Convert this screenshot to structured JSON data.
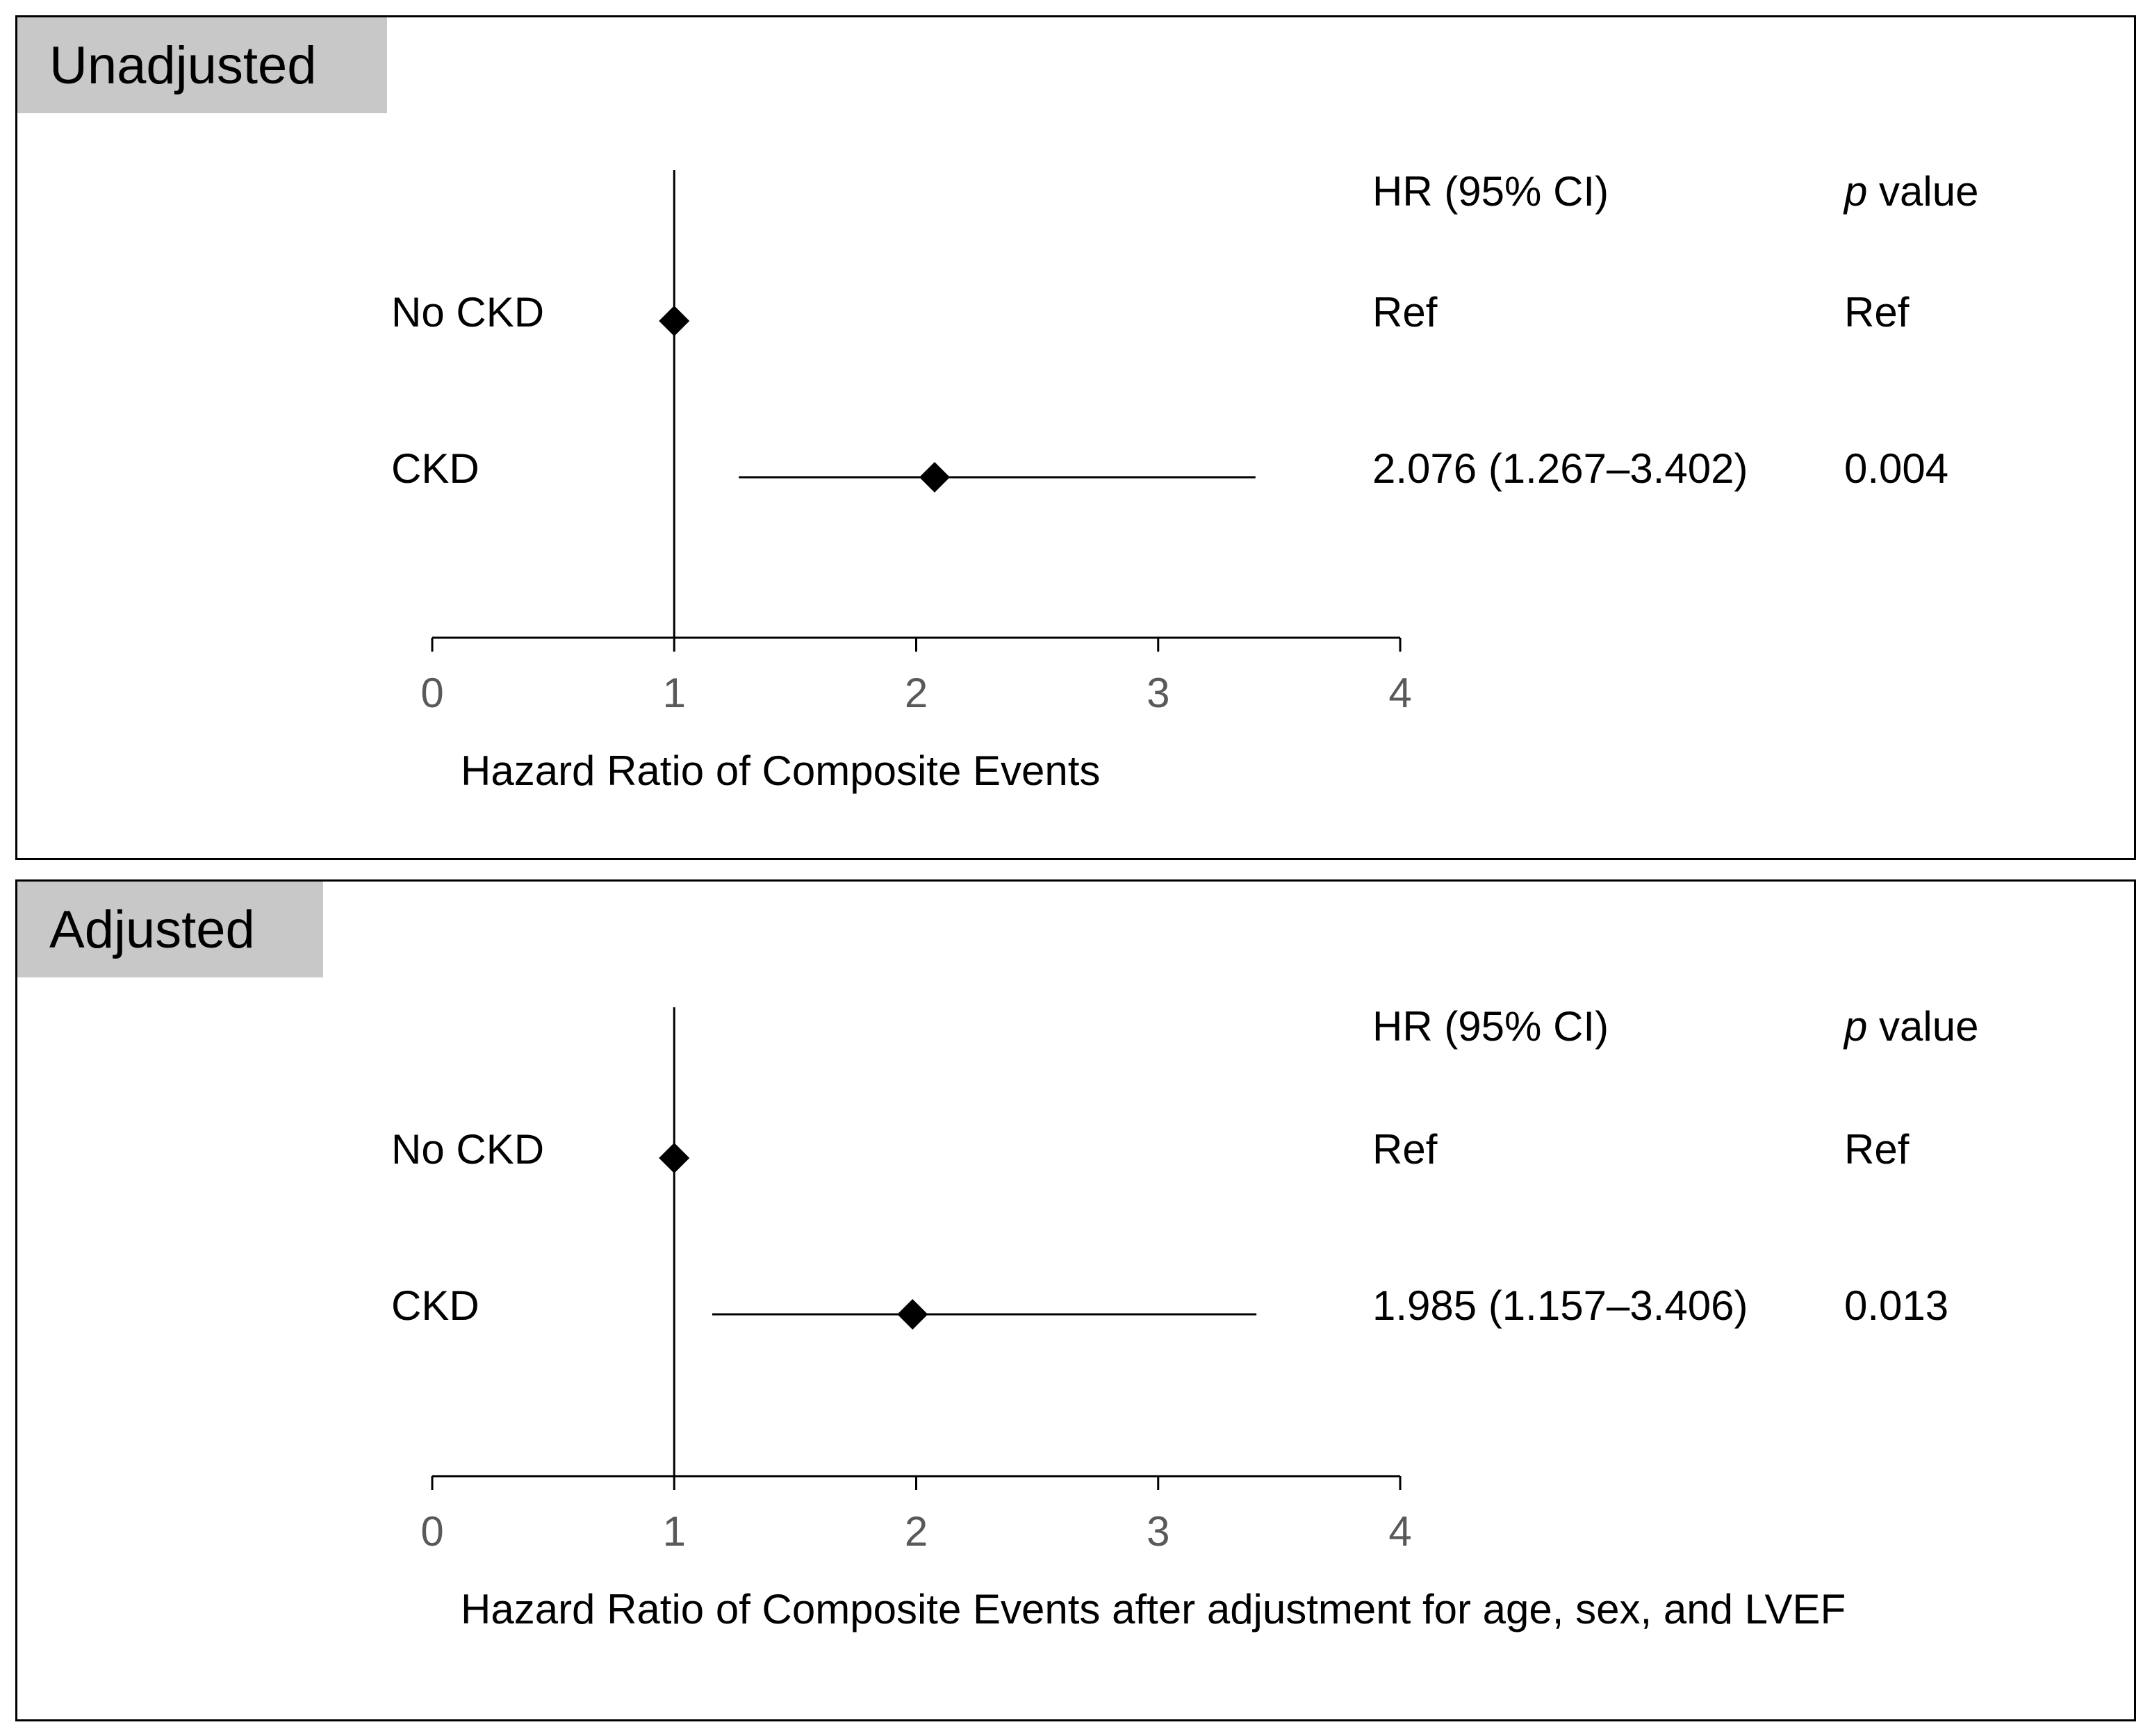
{
  "chart_data": [
    {
      "type": "forest",
      "panel_label": "Unadjusted",
      "xlabel": "Hazard Ratio of Composite Events",
      "xlim": [
        0,
        4
      ],
      "xticks": [
        "0",
        "1",
        "2",
        "3",
        "4"
      ],
      "reference_line": 1,
      "col_headers": {
        "hr": "HR (95% CI)",
        "p_prefix": "p",
        "p_suffix": " value"
      },
      "rows": [
        {
          "label": "No CKD",
          "hr": 1,
          "lo": 1,
          "hi": 1,
          "hr_text": "Ref",
          "p_text": "Ref"
        },
        {
          "label": "CKD",
          "hr": 2.076,
          "lo": 1.267,
          "hi": 3.402,
          "hr_text": "2.076 (1.267–3.402)",
          "p_text": "0.004"
        }
      ]
    },
    {
      "type": "forest",
      "panel_label": "Adjusted",
      "xlabel": "Hazard Ratio of Composite Events after adjustment for age, sex, and LVEF",
      "xlim": [
        0,
        4
      ],
      "xticks": [
        "0",
        "1",
        "2",
        "3",
        "4"
      ],
      "reference_line": 1,
      "col_headers": {
        "hr": "HR (95% CI)",
        "p_prefix": "p",
        "p_suffix": " value"
      },
      "rows": [
        {
          "label": "No CKD",
          "hr": 1,
          "lo": 1,
          "hi": 1,
          "hr_text": "Ref",
          "p_text": "Ref"
        },
        {
          "label": "CKD",
          "hr": 1.985,
          "lo": 1.157,
          "hi": 3.406,
          "hr_text": "1.985 (1.157–3.406)",
          "p_text": "0.013"
        }
      ]
    }
  ],
  "colors": {
    "tag_bg": "#c8c8c8",
    "tick_label": "#595959",
    "ink": "#000000"
  }
}
